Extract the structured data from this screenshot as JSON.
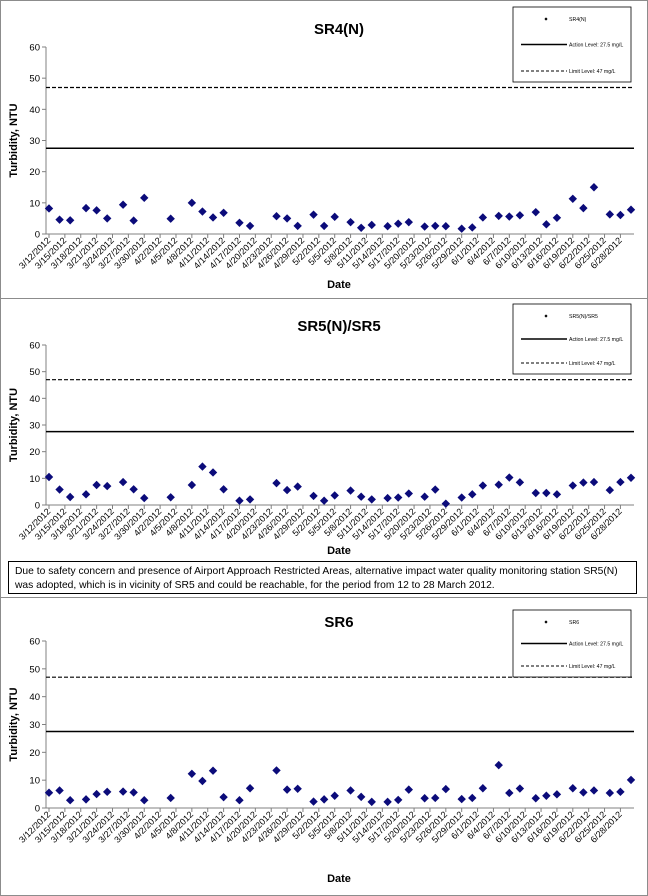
{
  "colors": {
    "marker": "#0b0b7a",
    "axis": "#808080",
    "line": "#000000"
  },
  "note": "Due to safety concern and presence of Airport Approach Restricted Areas, alternative impact water quality monitoring station SR5(N) was adopted, which is in vicinity of SR5 and could be reachable, for the period from 12 to 28 March 2012.",
  "chart_data": [
    {
      "type": "scatter",
      "title": "SR4(N)",
      "xlabel": "Date",
      "ylabel": "Turbidity, NTU",
      "ylim": [
        0,
        60
      ],
      "yticks": [
        0,
        10,
        20,
        30,
        40,
        50,
        60
      ],
      "grid": false,
      "legend_position": "top-right",
      "tick_labels": [
        "3/12/2012",
        "3/15/2012",
        "3/18/2012",
        "3/21/2012",
        "3/24/2012",
        "3/27/2012",
        "3/30/2012",
        "4/2/2012",
        "4/5/2012",
        "4/8/2012",
        "4/11/2012",
        "4/14/2012",
        "4/17/2012",
        "4/20/2012",
        "4/23/2012",
        "4/26/2012",
        "4/29/2012",
        "5/2/2012",
        "5/5/2012",
        "5/8/2012",
        "5/11/2012",
        "5/14/2012",
        "5/17/2012",
        "5/20/2012",
        "5/23/2012",
        "5/26/2012",
        "5/29/2012",
        "6/1/2012",
        "6/4/2012",
        "6/7/2012",
        "6/10/2012",
        "6/13/2012",
        "6/16/2012",
        "6/19/2012",
        "6/22/2012",
        "6/25/2012",
        "6/28/2012"
      ],
      "legend": [
        {
          "label": "SR4(N)",
          "style": "marker"
        },
        {
          "label": "Action Level: 27.5 mg/L",
          "style": "solid"
        },
        {
          "label": "Limit Level: 47 mg/L",
          "style": "dashed"
        }
      ],
      "reference_lines": [
        {
          "name": "Action Level",
          "value": 27.5,
          "style": "solid"
        },
        {
          "name": "Limit Level",
          "value": 47,
          "style": "dashed"
        }
      ],
      "series": [
        {
          "name": "SR4(N)",
          "points": [
            [
              "3/12/2012",
              8.2
            ],
            [
              "3/14/2012",
              4.6
            ],
            [
              "3/16/2012",
              4.4
            ],
            [
              "3/19/2012",
              8.3
            ],
            [
              "3/21/2012",
              7.6
            ],
            [
              "3/23/2012",
              5.0
            ],
            [
              "3/26/2012",
              9.4
            ],
            [
              "3/28/2012",
              4.3
            ],
            [
              "3/30/2012",
              11.6
            ],
            [
              "4/4/2012",
              4.9
            ],
            [
              "4/8/2012",
              10.0
            ],
            [
              "4/10/2012",
              7.2
            ],
            [
              "4/12/2012",
              5.3
            ],
            [
              "4/14/2012",
              6.8
            ],
            [
              "4/17/2012",
              3.6
            ],
            [
              "4/19/2012",
              2.6
            ],
            [
              "4/24/2012",
              5.7
            ],
            [
              "4/26/2012",
              5.0
            ],
            [
              "4/28/2012",
              2.6
            ],
            [
              "5/1/2012",
              6.2
            ],
            [
              "5/3/2012",
              2.6
            ],
            [
              "5/5/2012",
              5.5
            ],
            [
              "5/8/2012",
              3.8
            ],
            [
              "5/10/2012",
              2.0
            ],
            [
              "5/12/2012",
              2.9
            ],
            [
              "5/15/2012",
              2.5
            ],
            [
              "5/17/2012",
              3.3
            ],
            [
              "5/19/2012",
              3.8
            ],
            [
              "5/22/2012",
              2.4
            ],
            [
              "5/24/2012",
              2.6
            ],
            [
              "5/26/2012",
              2.5
            ],
            [
              "5/29/2012",
              1.7
            ],
            [
              "5/31/2012",
              2.1
            ],
            [
              "6/2/2012",
              5.3
            ],
            [
              "6/5/2012",
              5.8
            ],
            [
              "6/7/2012",
              5.6
            ],
            [
              "6/9/2012",
              6.0
            ],
            [
              "6/12/2012",
              7.0
            ],
            [
              "6/14/2012",
              3.1
            ],
            [
              "6/16/2012",
              5.2
            ],
            [
              "6/19/2012",
              11.3
            ],
            [
              "6/21/2012",
              8.3
            ],
            [
              "6/23/2012",
              15.0
            ],
            [
              "6/26/2012",
              6.3
            ],
            [
              "6/28/2012",
              6.1
            ],
            [
              "6/30/2012",
              7.8
            ]
          ]
        }
      ]
    },
    {
      "type": "scatter",
      "title": "SR5(N)/SR5",
      "xlabel": "Date",
      "ylabel": "Turbidity, NTU",
      "ylim": [
        0,
        60
      ],
      "yticks": [
        0,
        10,
        20,
        30,
        40,
        50,
        60
      ],
      "grid": false,
      "legend_position": "top-right",
      "tick_labels": [
        "3/12/2012",
        "3/15/2012",
        "3/18/2012",
        "3/21/2012",
        "3/24/2012",
        "3/27/2012",
        "3/30/2012",
        "4/2/2012",
        "4/5/2012",
        "4/8/2012",
        "4/11/2012",
        "4/14/2012",
        "4/17/2012",
        "4/20/2012",
        "4/23/2012",
        "4/26/2012",
        "4/29/2012",
        "5/2/2012",
        "5/5/2012",
        "5/8/2012",
        "5/11/2012",
        "5/14/2012",
        "5/17/2012",
        "5/20/2012",
        "5/23/2012",
        "5/26/2012",
        "5/29/2012",
        "6/1/2012",
        "6/4/2012",
        "6/7/2012",
        "6/10/2012",
        "6/13/2012",
        "6/16/2012",
        "6/19/2012",
        "6/22/2012",
        "6/25/2012",
        "6/28/2012"
      ],
      "legend": [
        {
          "label": "SR5(N)/SR5",
          "style": "marker"
        },
        {
          "label": "Action Level: 27.5 mg/L",
          "style": "solid"
        },
        {
          "label": "Limit Level: 47 mg/L",
          "style": "dashed"
        }
      ],
      "reference_lines": [
        {
          "name": "Action Level",
          "value": 27.5,
          "style": "solid"
        },
        {
          "name": "Limit Level",
          "value": 47,
          "style": "dashed"
        }
      ],
      "series": [
        {
          "name": "SR5(N)/SR5",
          "points": [
            [
              "3/12/2012",
              10.5
            ],
            [
              "3/14/2012",
              5.8
            ],
            [
              "3/16/2012",
              3.0
            ],
            [
              "3/19/2012",
              4.0
            ],
            [
              "3/21/2012",
              7.5
            ],
            [
              "3/23/2012",
              7.1
            ],
            [
              "3/26/2012",
              8.6
            ],
            [
              "3/28/2012",
              5.9
            ],
            [
              "3/30/2012",
              2.6
            ],
            [
              "4/4/2012",
              2.9
            ],
            [
              "4/8/2012",
              7.5
            ],
            [
              "4/10/2012",
              14.4
            ],
            [
              "4/12/2012",
              12.2
            ],
            [
              "4/14/2012",
              5.9
            ],
            [
              "4/17/2012",
              1.6
            ],
            [
              "4/19/2012",
              2.1
            ],
            [
              "4/24/2012",
              8.2
            ],
            [
              "4/26/2012",
              5.6
            ],
            [
              "4/28/2012",
              6.9
            ],
            [
              "5/1/2012",
              3.4
            ],
            [
              "5/3/2012",
              1.6
            ],
            [
              "5/5/2012",
              3.6
            ],
            [
              "5/8/2012",
              5.4
            ],
            [
              "5/10/2012",
              3.1
            ],
            [
              "5/12/2012",
              2.1
            ],
            [
              "5/15/2012",
              2.6
            ],
            [
              "5/17/2012",
              2.8
            ],
            [
              "5/19/2012",
              4.3
            ],
            [
              "5/22/2012",
              3.1
            ],
            [
              "5/24/2012",
              5.8
            ],
            [
              "5/26/2012",
              0.5
            ],
            [
              "5/29/2012",
              2.8
            ],
            [
              "5/31/2012",
              4.0
            ],
            [
              "6/2/2012",
              7.3
            ],
            [
              "6/5/2012",
              7.6
            ],
            [
              "6/7/2012",
              10.3
            ],
            [
              "6/9/2012",
              8.5
            ],
            [
              "6/12/2012",
              4.5
            ],
            [
              "6/14/2012",
              4.5
            ],
            [
              "6/16/2012",
              4.0
            ],
            [
              "6/19/2012",
              7.3
            ],
            [
              "6/21/2012",
              8.4
            ],
            [
              "6/23/2012",
              8.6
            ],
            [
              "6/26/2012",
              5.6
            ],
            [
              "6/28/2012",
              8.6
            ],
            [
              "6/30/2012",
              10.2
            ]
          ]
        }
      ]
    },
    {
      "type": "scatter",
      "title": "SR6",
      "xlabel": "Date",
      "ylabel": "Turbidity, NTU",
      "ylim": [
        0,
        60
      ],
      "yticks": [
        0,
        10,
        20,
        30,
        40,
        50,
        60
      ],
      "grid": false,
      "legend_position": "top-right",
      "tick_labels": [
        "3/12/2012",
        "3/15/2012",
        "3/18/2012",
        "3/21/2012",
        "3/24/2012",
        "3/27/2012",
        "3/30/2012",
        "4/2/2012",
        "4/5/2012",
        "4/8/2012",
        "4/11/2012",
        "4/14/2012",
        "4/17/2012",
        "4/20/2012",
        "4/23/2012",
        "4/26/2012",
        "4/29/2012",
        "5/2/2012",
        "5/5/2012",
        "5/8/2012",
        "5/11/2012",
        "5/14/2012",
        "5/17/2012",
        "5/20/2012",
        "5/23/2012",
        "5/26/2012",
        "5/29/2012",
        "6/1/2012",
        "6/4/2012",
        "6/7/2012",
        "6/10/2012",
        "6/13/2012",
        "6/16/2012",
        "6/19/2012",
        "6/22/2012",
        "6/25/2012",
        "6/28/2012"
      ],
      "legend": [
        {
          "label": "SR6",
          "style": "marker"
        },
        {
          "label": "Action Level: 27.5 mg/L",
          "style": "solid"
        },
        {
          "label": "Limit Level: 47 mg/L",
          "style": "dashed"
        }
      ],
      "reference_lines": [
        {
          "name": "Action Level",
          "value": 27.5,
          "style": "solid"
        },
        {
          "name": "Limit Level",
          "value": 47,
          "style": "dashed"
        }
      ],
      "series": [
        {
          "name": "SR6",
          "points": [
            [
              "3/12/2012",
              5.5
            ],
            [
              "3/14/2012",
              6.3
            ],
            [
              "3/16/2012",
              2.8
            ],
            [
              "3/19/2012",
              3.1
            ],
            [
              "3/21/2012",
              5.0
            ],
            [
              "3/23/2012",
              5.8
            ],
            [
              "3/26/2012",
              5.9
            ],
            [
              "3/28/2012",
              5.6
            ],
            [
              "3/30/2012",
              2.8
            ],
            [
              "4/4/2012",
              3.6
            ],
            [
              "4/8/2012",
              12.3
            ],
            [
              "4/10/2012",
              9.7
            ],
            [
              "4/12/2012",
              13.4
            ],
            [
              "4/14/2012",
              3.9
            ],
            [
              "4/17/2012",
              2.8
            ],
            [
              "4/19/2012",
              7.1
            ],
            [
              "4/24/2012",
              13.5
            ],
            [
              "4/26/2012",
              6.6
            ],
            [
              "4/28/2012",
              6.9
            ],
            [
              "5/1/2012",
              2.3
            ],
            [
              "5/3/2012",
              3.1
            ],
            [
              "5/5/2012",
              4.4
            ],
            [
              "5/8/2012",
              6.3
            ],
            [
              "5/10/2012",
              4.0
            ],
            [
              "5/12/2012",
              2.2
            ],
            [
              "5/15/2012",
              2.2
            ],
            [
              "5/17/2012",
              2.9
            ],
            [
              "5/19/2012",
              6.6
            ],
            [
              "5/22/2012",
              3.5
            ],
            [
              "5/24/2012",
              3.6
            ],
            [
              "5/26/2012",
              6.8
            ],
            [
              "5/29/2012",
              3.2
            ],
            [
              "5/31/2012",
              3.6
            ],
            [
              "6/2/2012",
              7.1
            ],
            [
              "6/5/2012",
              15.4
            ],
            [
              "6/7/2012",
              5.4
            ],
            [
              "6/9/2012",
              7.0
            ],
            [
              "6/12/2012",
              3.5
            ],
            [
              "6/14/2012",
              4.4
            ],
            [
              "6/16/2012",
              4.9
            ],
            [
              "6/19/2012",
              7.1
            ],
            [
              "6/21/2012",
              5.6
            ],
            [
              "6/23/2012",
              6.3
            ],
            [
              "6/26/2012",
              5.4
            ],
            [
              "6/28/2012",
              5.8
            ],
            [
              "6/30/2012",
              10.1
            ]
          ]
        }
      ]
    }
  ]
}
